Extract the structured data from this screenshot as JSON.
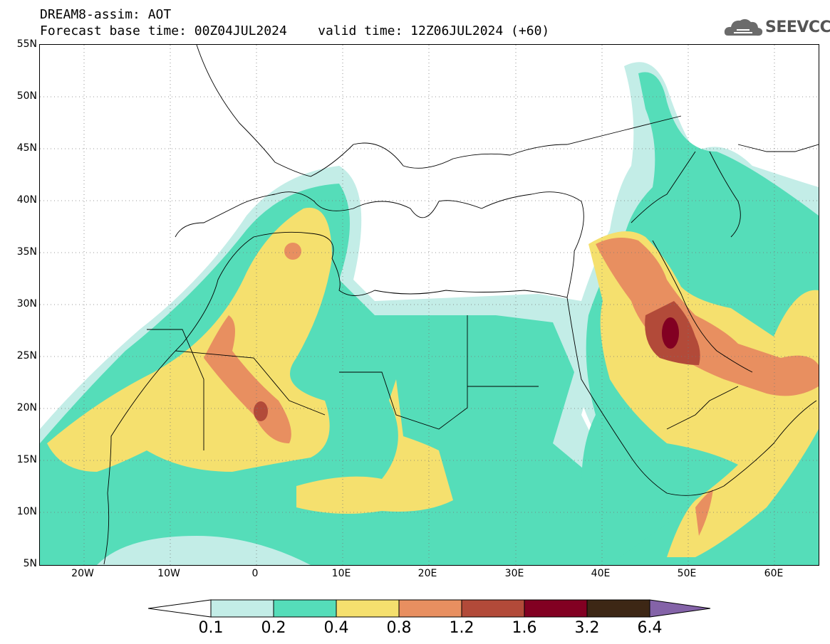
{
  "header": {
    "title": "DREAM8-assim: AOT",
    "subtitle": "Forecast base time: 00Z04JUL2024    valid time: 12Z06JUL2024 (+60)"
  },
  "logo": {
    "text": "SEEVCCC",
    "icon": "cloud-logo-icon"
  },
  "map": {
    "lat_ticks": [
      "55N",
      "50N",
      "45N",
      "40N",
      "35N",
      "30N",
      "25N",
      "20N",
      "15N",
      "10N",
      "5N"
    ],
    "lon_ticks": [
      "20W",
      "10W",
      "0",
      "10E",
      "20E",
      "30E",
      "40E",
      "50E",
      "60E"
    ],
    "lat_range": [
      5,
      55
    ],
    "lon_range": [
      -25,
      65
    ],
    "gridlines": "dotted"
  },
  "legend": {
    "thresholds": [
      "0.1",
      "0.2",
      "0.4",
      "0.8",
      "1.2",
      "1.6",
      "3.2",
      "6.4"
    ],
    "colors": [
      "#ffffff",
      "#c3ede7",
      "#55ddb9",
      "#f5e06e",
      "#e88f60",
      "#b24a39",
      "#820022",
      "#3d2715",
      "#8463a8"
    ]
  },
  "colors": {
    "c1": "#c3ede7",
    "c2": "#55ddb9",
    "c3": "#f5e06e",
    "c4": "#e88f60",
    "c5": "#b24a39",
    "c6": "#820022"
  }
}
